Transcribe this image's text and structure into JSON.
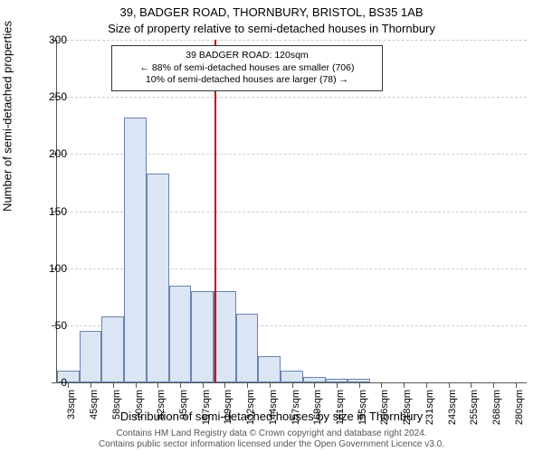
{
  "titles": {
    "main": "39, BADGER ROAD, THORNBURY, BRISTOL, BS35 1AB",
    "sub": "Size of property relative to semi-detached houses in Thornbury"
  },
  "axes": {
    "y_label": "Number of semi-detached properties",
    "x_label": "Distribution of semi-detached houses by size in Thornbury",
    "ylim": [
      0,
      300
    ],
    "y_ticks": [
      0,
      50,
      100,
      150,
      200,
      250,
      300
    ],
    "x_categories": [
      "33sqm",
      "45sqm",
      "58sqm",
      "70sqm",
      "82sqm",
      "95sqm",
      "107sqm",
      "119sqm",
      "132sqm",
      "144sqm",
      "157sqm",
      "169sqm",
      "181sqm",
      "195sqm",
      "206sqm",
      "218sqm",
      "231sqm",
      "243sqm",
      "255sqm",
      "268sqm",
      "280sqm"
    ]
  },
  "histogram": {
    "type": "histogram",
    "values": [
      10,
      45,
      58,
      232,
      183,
      85,
      80,
      80,
      60,
      23,
      10,
      5,
      3,
      3,
      0,
      0,
      0,
      0,
      0,
      0,
      0
    ],
    "bar_fill": "#dbe5f4",
    "bar_border": "#6a84b0",
    "grid_color": "#cccccc",
    "axis_color": "#555555",
    "background": "#ffffff"
  },
  "marker": {
    "position_category_index": 7,
    "color": "#cc0000"
  },
  "annotation": {
    "line1": "39 BADGER ROAD: 120sqm",
    "line2": "← 88% of semi-detached houses are smaller (706)",
    "line3": "10% of semi-detached houses are larger (78) →"
  },
  "footnote": {
    "line1": "Contains HM Land Registry data © Crown copyright and database right 2024.",
    "line2": "Contains public sector information licensed under the Open Government Licence v3.0."
  },
  "style": {
    "title_fontsize": 13,
    "axis_label_fontsize": 13,
    "tick_fontsize": 12,
    "annotation_fontsize": 10.5,
    "footnote_fontsize": 10
  }
}
